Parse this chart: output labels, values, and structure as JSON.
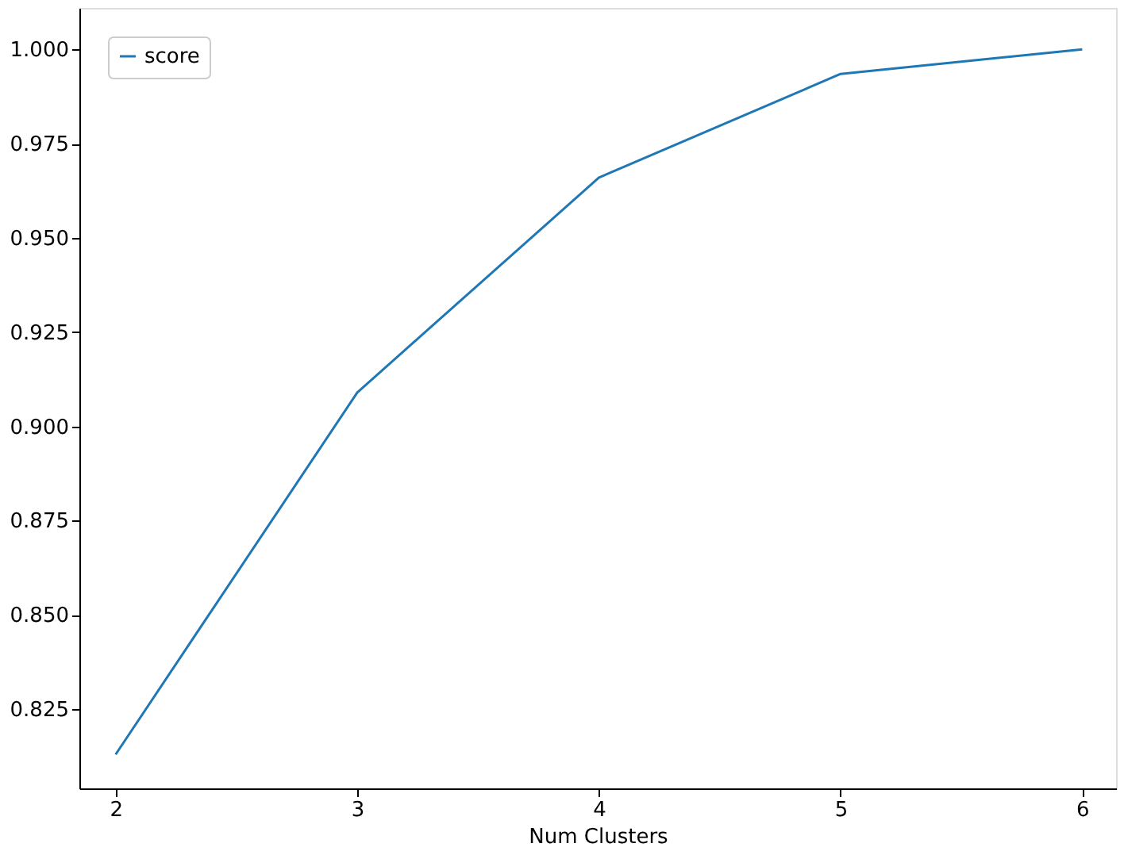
{
  "chart_data": {
    "type": "line",
    "xlabel": "Num Clusters",
    "x": [
      2,
      3,
      4,
      5,
      6
    ],
    "series": [
      {
        "name": "score",
        "color": "#1f77b4",
        "values": [
          0.813,
          0.909,
          0.966,
          0.9935,
          1.0
        ]
      }
    ],
    "xlim": [
      1.85,
      6.14
    ],
    "ylim": [
      0.804,
      1.011
    ],
    "xticks": [
      2,
      3,
      4,
      5,
      6
    ],
    "yticks": [
      {
        "value": 0.825,
        "label": "0.825"
      },
      {
        "value": 0.85,
        "label": "0.850"
      },
      {
        "value": 0.875,
        "label": "0.875"
      },
      {
        "value": 0.9,
        "label": "0.900"
      },
      {
        "value": 0.925,
        "label": "0.925"
      },
      {
        "value": 0.95,
        "label": "0.950"
      },
      {
        "value": 0.975,
        "label": "0.975"
      },
      {
        "value": 1.0,
        "label": "1.000"
      }
    ],
    "grid": false,
    "legend": "top left",
    "marker": "none",
    "line_style": "solid"
  }
}
